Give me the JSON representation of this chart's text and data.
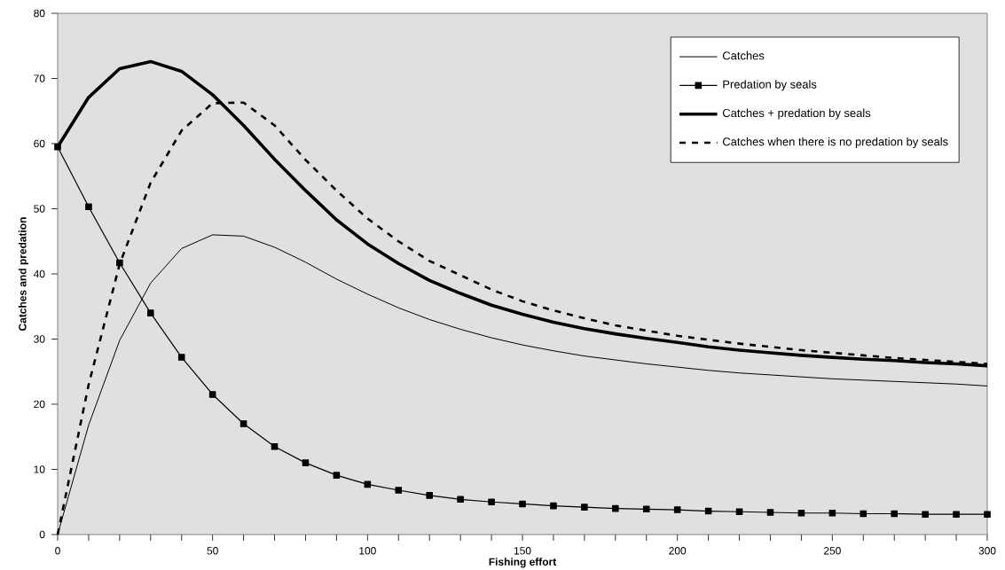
{
  "chart_data": {
    "type": "line",
    "xlabel": "Fishing effort",
    "ylabel": "Catches and predation",
    "x": [
      0,
      10,
      20,
      30,
      40,
      50,
      60,
      70,
      80,
      90,
      100,
      110,
      120,
      130,
      140,
      150,
      160,
      170,
      180,
      190,
      200,
      210,
      220,
      230,
      240,
      250,
      260,
      270,
      280,
      290,
      300
    ],
    "series": [
      {
        "name": "Catches",
        "color": "#000000",
        "line_style": "solid",
        "marker": "none",
        "values": [
          0,
          16.8,
          29.8,
          38.6,
          43.9,
          46,
          45.8,
          44.1,
          41.8,
          39.2,
          36.9,
          34.8,
          33,
          31.5,
          30.2,
          29.1,
          28.2,
          27.4,
          26.8,
          26.2,
          25.7,
          25.2,
          24.8,
          24.5,
          24.2,
          23.9,
          23.7,
          23.5,
          23.3,
          23.1,
          22.8
        ]
      },
      {
        "name": "Predation by seals",
        "color": "#000000",
        "line_style": "solid",
        "marker": "square",
        "values": [
          59.5,
          50.3,
          41.7,
          34,
          27.2,
          21.5,
          17,
          13.5,
          11,
          9.1,
          7.7,
          6.8,
          6,
          5.4,
          5,
          4.7,
          4.4,
          4.2,
          4,
          3.9,
          3.8,
          3.6,
          3.5,
          3.4,
          3.3,
          3.3,
          3.2,
          3.2,
          3.1,
          3.1,
          3.1
        ]
      },
      {
        "name": "Catches + predation by seals",
        "color": "#000000",
        "line_style": "solid",
        "marker": "none",
        "values": [
          59.5,
          67.1,
          71.5,
          72.6,
          71.1,
          67.5,
          62.8,
          57.6,
          52.8,
          48.3,
          44.6,
          41.6,
          39,
          37,
          35.2,
          33.8,
          32.6,
          31.6,
          30.8,
          30.1,
          29.5,
          28.8,
          28.3,
          27.9,
          27.5,
          27.2,
          26.9,
          26.7,
          26.4,
          26.2,
          25.9
        ]
      },
      {
        "name": "Catches when there is no predation by seals",
        "color": "#000000",
        "line_style": "dashed",
        "marker": "none",
        "values": [
          0,
          23,
          41.5,
          54,
          62,
          66.2,
          66.3,
          62.8,
          57.5,
          52.8,
          48.5,
          45,
          42,
          39.8,
          37.6,
          35.8,
          34.4,
          33.2,
          32.1,
          31.3,
          30.5,
          29.9,
          29.3,
          28.8,
          28.3,
          27.9,
          27.5,
          27.1,
          26.8,
          26.5,
          26.2
        ]
      }
    ],
    "xlim": [
      0,
      300
    ],
    "ylim": [
      0,
      80
    ],
    "xticks": [
      0,
      {
        "value": 10,
        "label": null
      },
      {
        "value": 20,
        "label": null
      },
      {
        "value": 30,
        "label": null
      },
      {
        "value": 40,
        "label": null
      },
      50,
      {
        "value": 60,
        "label": null
      },
      {
        "value": 70,
        "label": null
      },
      {
        "value": 80,
        "label": null
      },
      {
        "value": 90,
        "label": null
      },
      100,
      {
        "value": 110,
        "label": null
      },
      {
        "value": 120,
        "label": null
      },
      {
        "value": 130,
        "label": null
      },
      {
        "value": 140,
        "label": null
      },
      150,
      {
        "value": 160,
        "label": null
      },
      {
        "value": 170,
        "label": null
      },
      {
        "value": 180,
        "label": null
      },
      {
        "value": 190,
        "label": null
      },
      200,
      {
        "value": 210,
        "label": null
      },
      {
        "value": 220,
        "label": null
      },
      {
        "value": 230,
        "label": null
      },
      {
        "value": 240,
        "label": null
      },
      250,
      {
        "value": 260,
        "label": null
      },
      {
        "value": 270,
        "label": null
      },
      {
        "value": 280,
        "label": null
      },
      {
        "value": 290,
        "label": null
      },
      300
    ],
    "yticks": [
      0,
      10,
      20,
      30,
      40,
      50,
      60,
      70,
      80
    ],
    "grid": false,
    "legend": "top right"
  }
}
